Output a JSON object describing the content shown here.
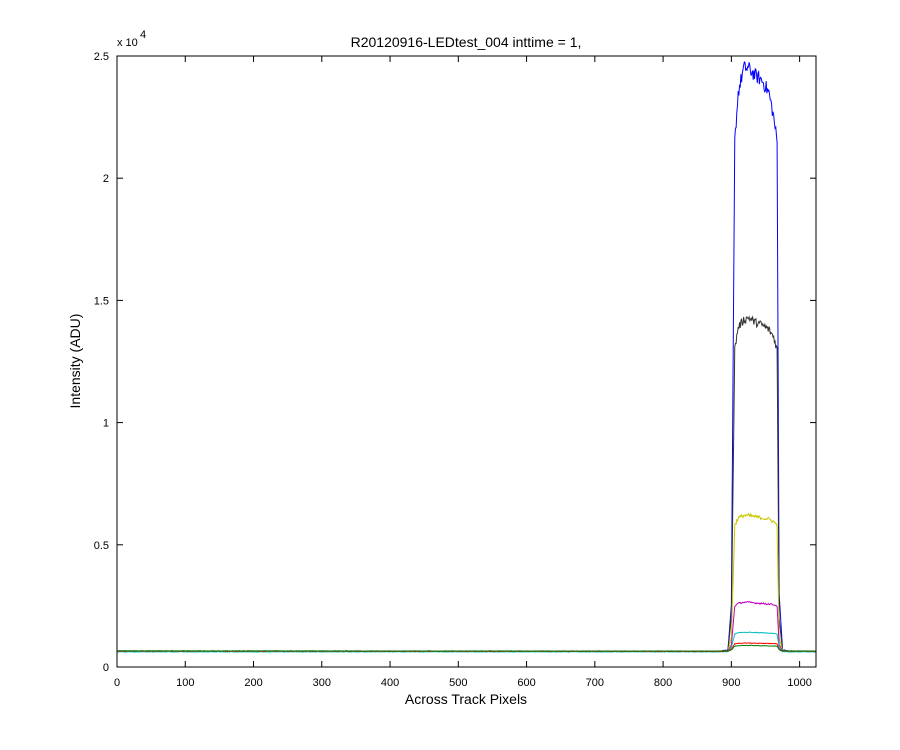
{
  "chart_data": {
    "type": "line",
    "title": "R20120916-LEDtest_004 inttime = 1,",
    "xlabel": "Across Track Pixels",
    "ylabel": "Intensity (ADU)",
    "xlim": [
      0,
      1024
    ],
    "ylim": [
      0,
      25000
    ],
    "x_ticks": [
      0,
      100,
      200,
      300,
      400,
      500,
      600,
      700,
      800,
      900,
      1000
    ],
    "y_ticks": [
      0,
      5000,
      10000,
      15000,
      20000,
      25000
    ],
    "y_tick_labels": [
      "0",
      "0.5",
      "1",
      "1.5",
      "2",
      "2.5"
    ],
    "y_exponent_base": "x 10",
    "y_exponent_power": "4",
    "grid": false,
    "profile_x": [
      0,
      880,
      895,
      900,
      905,
      910,
      918,
      925,
      935,
      945,
      955,
      962,
      967,
      970,
      975,
      985,
      1024
    ],
    "series": [
      {
        "color": "#0000ff",
        "values": [
          650,
          640,
          700,
          2500,
          21500,
          23500,
          24500,
          24500,
          24200,
          24000,
          23500,
          22500,
          21500,
          3000,
          700,
          650,
          640
        ]
      },
      {
        "color": "#333333",
        "values": [
          650,
          640,
          680,
          2000,
          13000,
          13900,
          14200,
          14300,
          14100,
          14000,
          13800,
          13500,
          13000,
          2000,
          680,
          650,
          640
        ]
      },
      {
        "color": "#c8c800",
        "values": [
          650,
          640,
          660,
          1200,
          5800,
          6100,
          6200,
          6200,
          6150,
          6100,
          6050,
          5950,
          5800,
          1200,
          660,
          650,
          640
        ]
      },
      {
        "color": "#bf00bf",
        "values": [
          650,
          640,
          655,
          900,
          2500,
          2600,
          2650,
          2650,
          2620,
          2600,
          2580,
          2550,
          2500,
          900,
          655,
          650,
          640
        ]
      },
      {
        "color": "#00bfbf",
        "values": [
          620,
          620,
          630,
          800,
          1350,
          1400,
          1420,
          1420,
          1410,
          1400,
          1390,
          1370,
          1350,
          800,
          630,
          620,
          620
        ]
      },
      {
        "color": "#ff0000",
        "values": [
          650,
          640,
          650,
          720,
          950,
          970,
          980,
          980,
          975,
          970,
          965,
          960,
          950,
          720,
          650,
          650,
          640
        ]
      },
      {
        "color": "#008000",
        "values": [
          660,
          650,
          655,
          700,
          850,
          870,
          880,
          880,
          875,
          870,
          865,
          860,
          850,
          700,
          655,
          660,
          650
        ]
      }
    ]
  }
}
